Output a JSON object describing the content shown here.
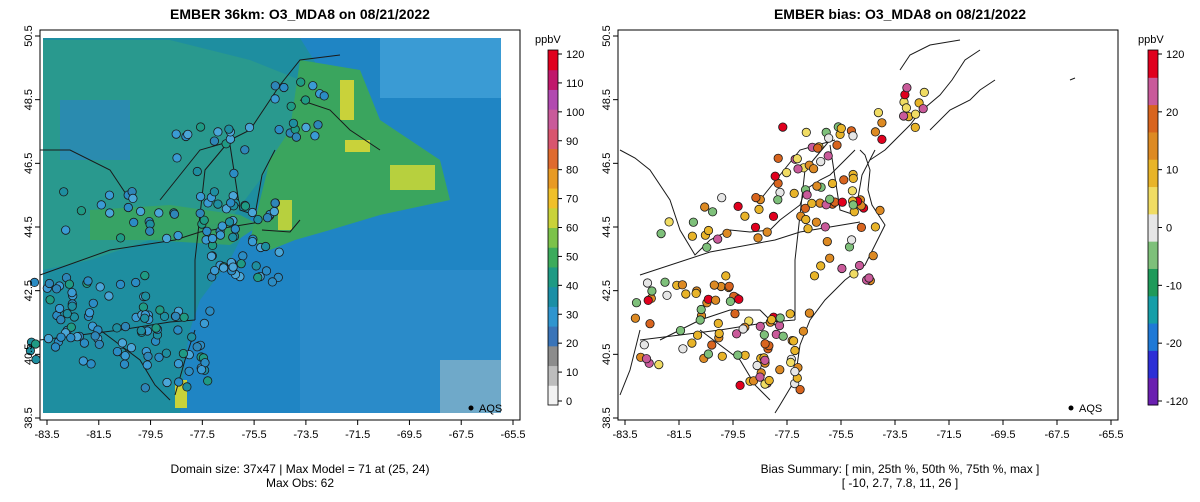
{
  "left": {
    "title": "EMBER 36km: O3_MDA8 on 08/21/2022",
    "caption_line1": "Domain size: 37x47 | Max Model = 71 at (25, 24)",
    "caption_line2": "Max Obs: 62",
    "legend_label": "AQS",
    "colorbar": {
      "unit": "ppbV",
      "ticks": [
        "120",
        "110",
        "100",
        "90",
        "80",
        "70",
        "60",
        "50",
        "40",
        "30",
        "20",
        "10",
        "0"
      ],
      "colors": [
        "#f2f2f2",
        "#bdbdbd",
        "#8c8c8c",
        "#3a74b8",
        "#2f95cf",
        "#1b8fa6",
        "#1e9a84",
        "#3cab5c",
        "#7cc24a",
        "#c9d23a",
        "#f0c02a",
        "#e89a24",
        "#df6a2e",
        "#d8556e",
        "#c95a9a",
        "#b14ab0",
        "#c0186b",
        "#e0001e"
      ]
    }
  },
  "right": {
    "title": "EMBER bias: O3_MDA8 on 08/21/2022",
    "caption_line1": "Bias Summary: [ min, 25th %, 50th %, 75th %, max ]",
    "caption_line2": "[ -10,  2.7,  7.8,  11,  26 ]",
    "legend_label": "AQS",
    "colorbar": {
      "unit": "ppbV",
      "ticks": [
        "120",
        "20",
        "10",
        "0",
        "-10",
        "-20",
        "-120"
      ],
      "colors": [
        "#6a1fb0",
        "#2d2fd6",
        "#1f79d6",
        "#169ea8",
        "#1f9a5a",
        "#7ec07a",
        "#e6e6e6",
        "#f0dc63",
        "#e8b429",
        "#dd8a23",
        "#d8641e",
        "#c95a9a",
        "#e0001e"
      ]
    }
  },
  "map": {
    "x_ticks": [
      "-83.5",
      "-81.5",
      "-79.5",
      "-77.5",
      "-75.5",
      "-73.5",
      "-71.5",
      "-69.5",
      "-67.5",
      "-65.5"
    ],
    "y_ticks": [
      "38.5",
      "40.5",
      "42.5",
      "44.5",
      "46.5",
      "48.5",
      "50.5"
    ]
  },
  "colors": {
    "sea": "#1f85c4",
    "land_dark": "#1e8ea0",
    "land_green": "#3aa55e",
    "band_yellow": "#b7d03e"
  }
}
